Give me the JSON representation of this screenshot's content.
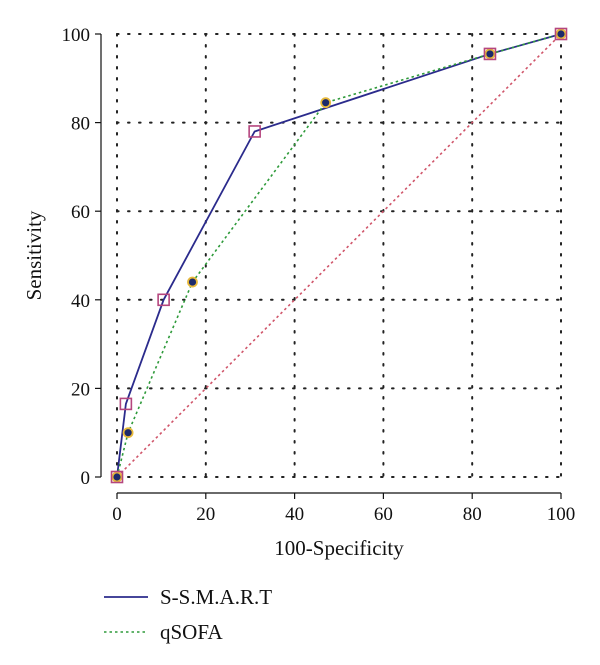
{
  "chart_data": {
    "type": "line",
    "title": "",
    "xlabel": "100-Specificity",
    "ylabel": "Sensitivity",
    "xlim": [
      0,
      100
    ],
    "ylim": [
      0,
      100
    ],
    "xticks": [
      "0",
      "20",
      "40",
      "60",
      "80",
      "100"
    ],
    "yticks": [
      "0",
      "20",
      "40",
      "60",
      "80",
      "100"
    ],
    "xtick_values": [
      0,
      20,
      40,
      60,
      80,
      100
    ],
    "ytick_values": [
      0,
      20,
      40,
      60,
      80,
      100
    ],
    "grid": true,
    "legend_position": "bottom-left",
    "series": [
      {
        "name": "S-S.M.A.R.T",
        "style": "solid",
        "color": "#2b2b8c",
        "marker": "open-square",
        "marker_color": "#b5467e",
        "x": [
          0,
          2,
          10.5,
          31,
          84,
          100
        ],
        "y": [
          0,
          16.5,
          40,
          78,
          95.5,
          100
        ]
      },
      {
        "name": "qSOFA",
        "style": "dotted",
        "color": "#2e9a3a",
        "marker": "dot",
        "marker_color": "#1c2a6b",
        "marker_edge": "#e8b93a",
        "x": [
          0,
          2.5,
          17,
          47,
          84,
          100
        ],
        "y": [
          0,
          10,
          44,
          84.5,
          95.5,
          100
        ]
      },
      {
        "style": "dotted",
        "color": "#d0556a",
        "x": [
          0,
          100
        ],
        "y": [
          0,
          100
        ]
      }
    ]
  }
}
